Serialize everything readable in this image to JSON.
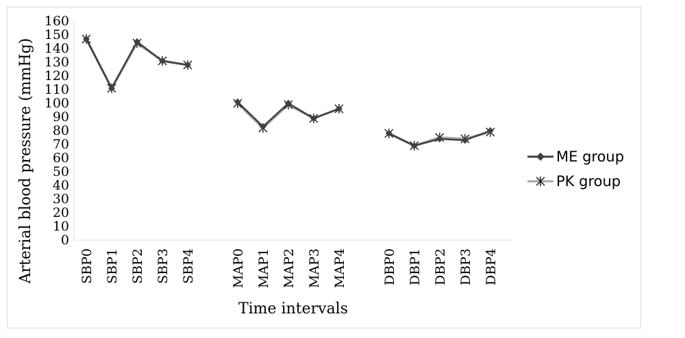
{
  "chart_data": {
    "type": "line",
    "title": "",
    "xlabel": "Time intervals",
    "ylabel": "Arterial blood pressure (mmHg)",
    "ylim": [
      0,
      160
    ],
    "yticks": [
      0,
      10,
      20,
      30,
      40,
      50,
      60,
      70,
      80,
      90,
      100,
      110,
      120,
      130,
      140,
      150,
      160
    ],
    "grid": false,
    "legend_position": "right",
    "categories": [
      "SBP0",
      "SBP1",
      "SBP2",
      "SBP3",
      "SBP4",
      "MAP0",
      "MAP1",
      "MAP2",
      "MAP3",
      "MAP4",
      "DBP0",
      "DBP1",
      "DBP2",
      "DBP3",
      "DBP4"
    ],
    "groups": [
      {
        "categories": [
          "SBP0",
          "SBP1",
          "SBP2",
          "SBP3",
          "SBP4"
        ]
      },
      {
        "categories": [
          "MAP0",
          "MAP1",
          "MAP2",
          "MAP3",
          "MAP4"
        ]
      },
      {
        "categories": [
          "DBP0",
          "DBP1",
          "DBP2",
          "DBP3",
          "DBP4"
        ]
      }
    ],
    "series": [
      {
        "name": "ME group",
        "color": "#404040",
        "marker": "diamond",
        "values": [
          147,
          111,
          145,
          131,
          128,
          101,
          83,
          100,
          89,
          96,
          78,
          69,
          74,
          73,
          80
        ]
      },
      {
        "name": "PK group",
        "color": "#a6a6a6",
        "marker": "asterisk",
        "values": [
          147,
          111,
          144,
          131,
          128,
          100,
          82,
          99,
          89,
          96,
          78,
          69,
          75,
          74,
          79
        ]
      }
    ]
  }
}
